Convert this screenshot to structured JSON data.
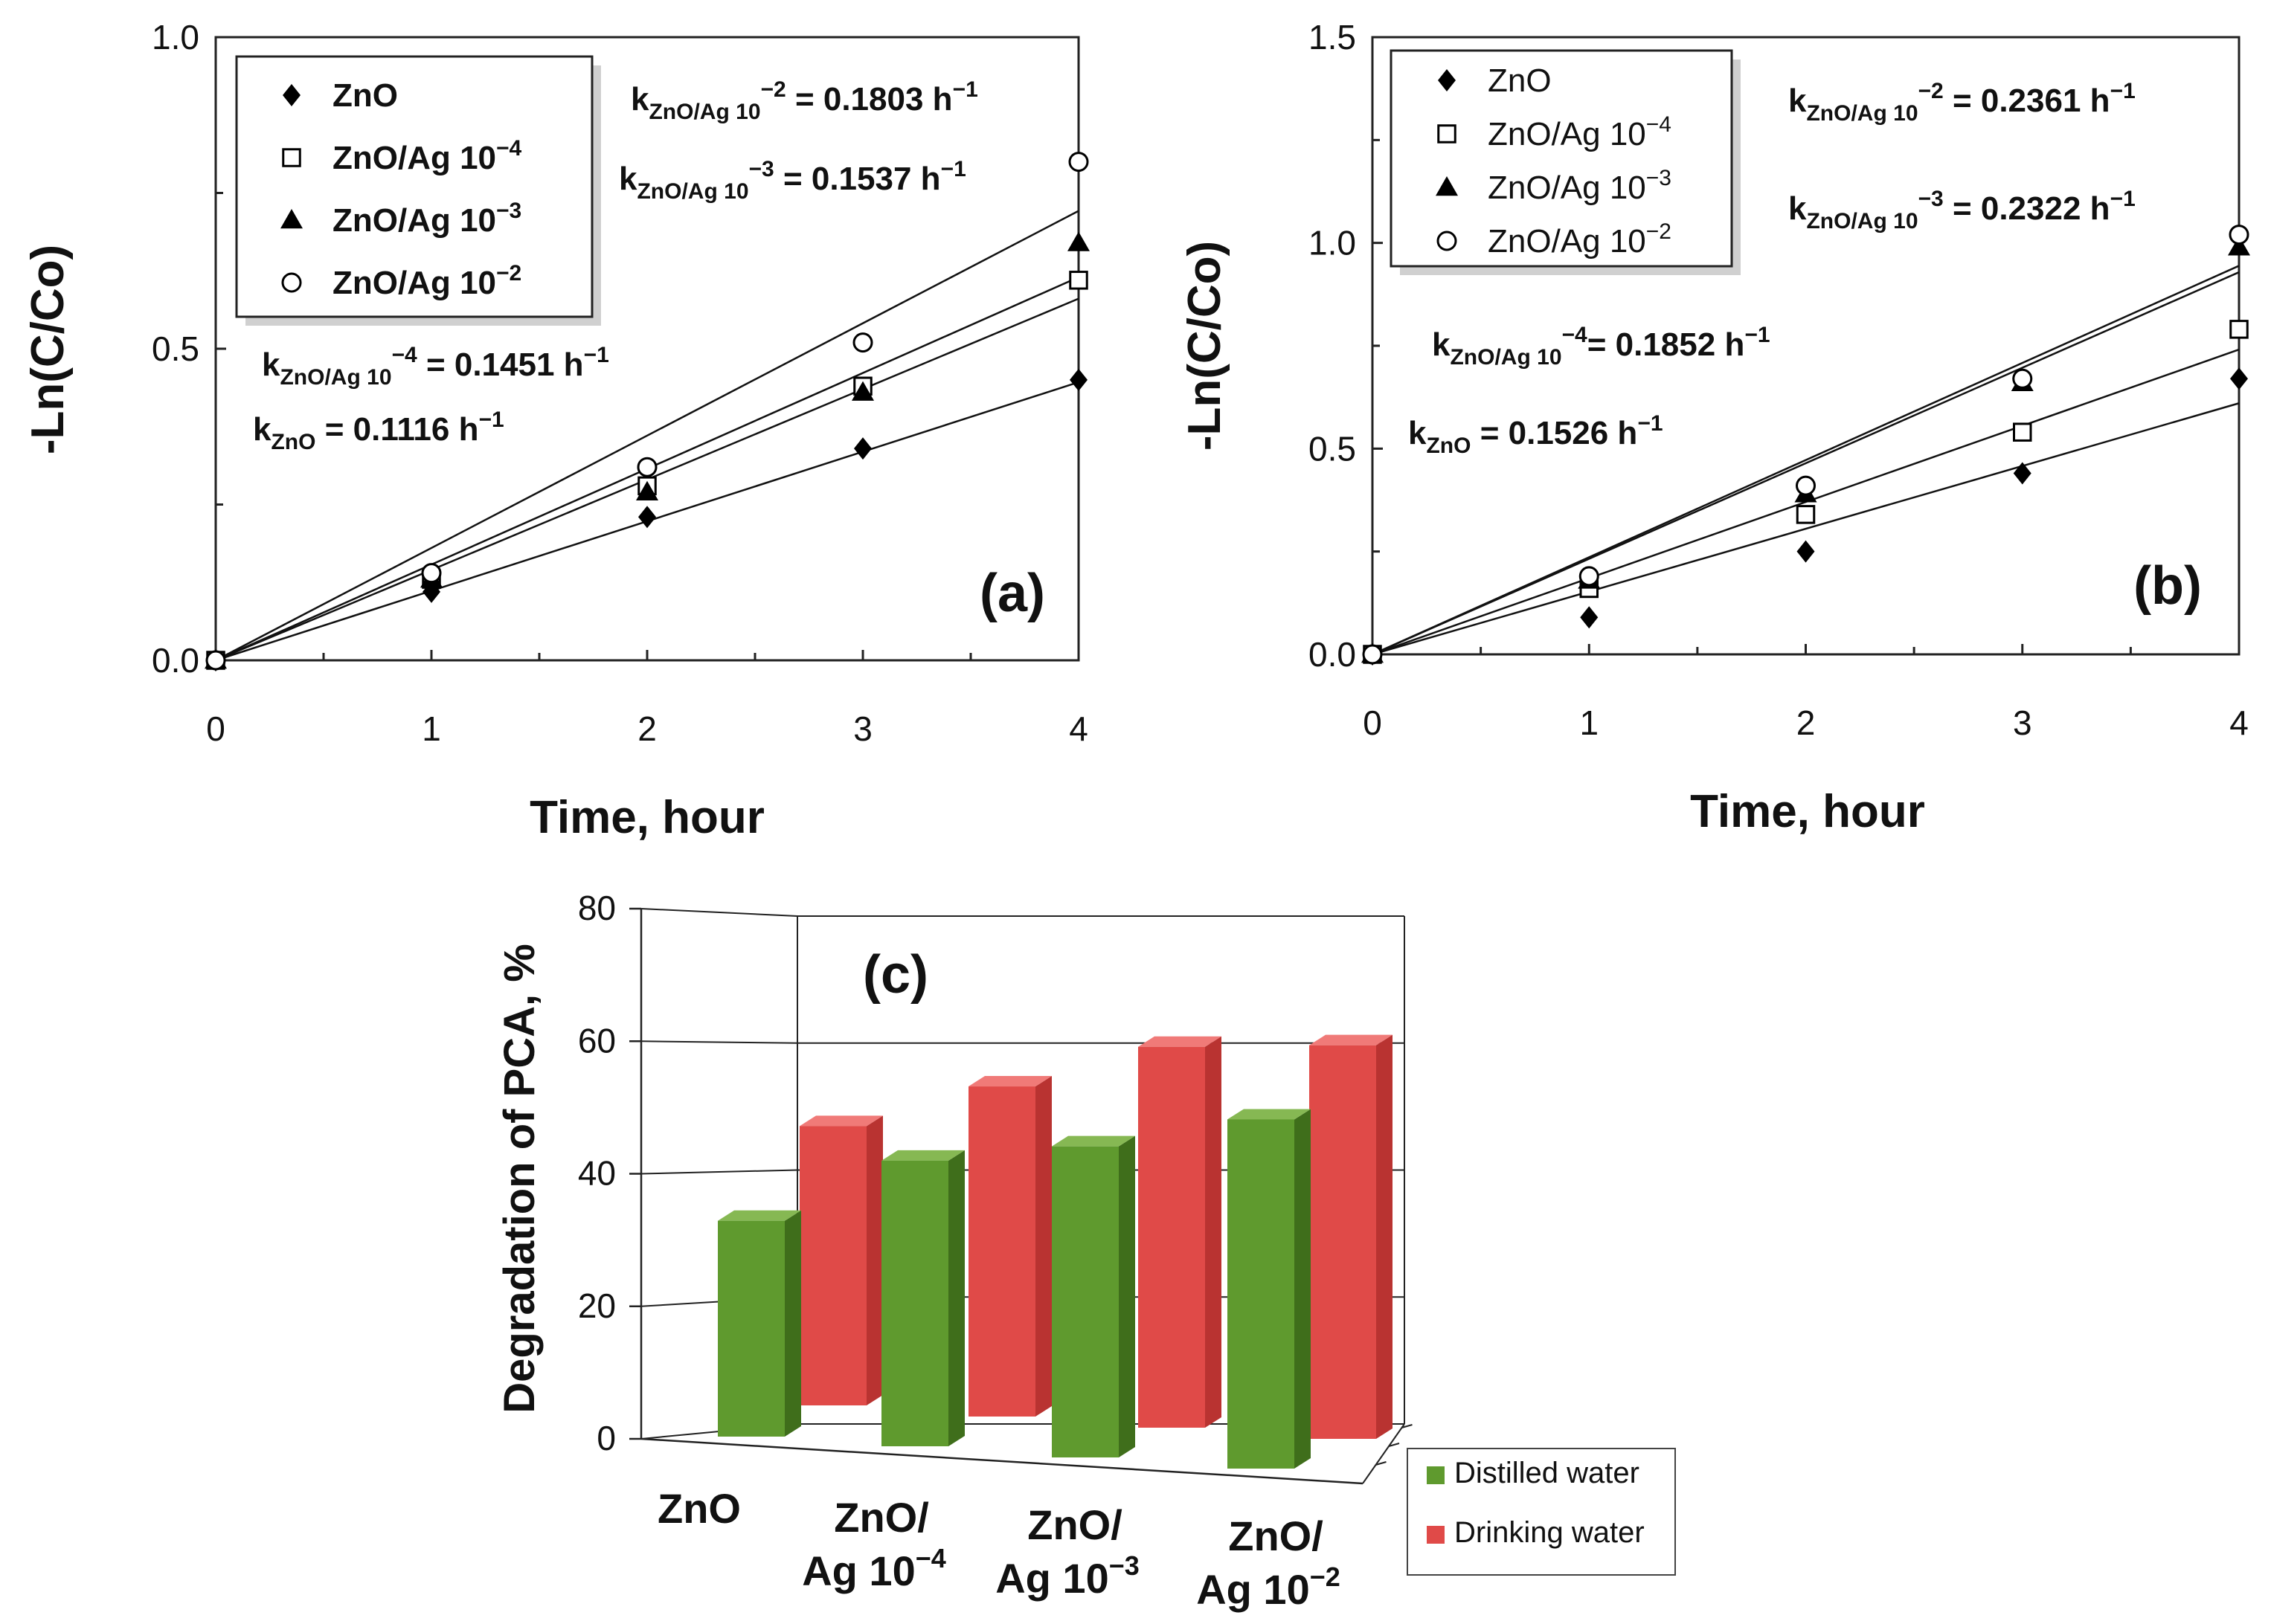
{
  "chart_data": [
    {
      "type": "scatter",
      "panel_label": "(a)",
      "xlabel": "Time, hour",
      "ylabel": "-Ln(C/Co)",
      "xlim": [
        0,
        4
      ],
      "ylim": [
        0,
        1.0
      ],
      "x_ticks": [
        "0",
        "1",
        "2",
        "3",
        "4"
      ],
      "y_ticks": [
        "0.0",
        "0.5",
        "1.0"
      ],
      "legend_position": "top-left",
      "series": [
        {
          "name": "ZnO",
          "marker": "diamond",
          "x": [
            0,
            1,
            2,
            3,
            4
          ],
          "y": [
            0,
            0.11,
            0.23,
            0.34,
            0.45
          ],
          "slope": 0.1116,
          "legend_label": "ZnO",
          "legend_sup": ""
        },
        {
          "name": "ZnO/Ag 10⁻⁴",
          "marker": "square-open",
          "x": [
            0,
            1,
            2,
            3,
            4
          ],
          "y": [
            0,
            0.13,
            0.28,
            0.44,
            0.61
          ],
          "slope": 0.1451,
          "legend_label": "ZnO/Ag 10",
          "legend_sup": "−4"
        },
        {
          "name": "ZnO/Ag 10⁻³",
          "marker": "triangle",
          "x": [
            0,
            1,
            2,
            3,
            4
          ],
          "y": [
            0,
            0.13,
            0.27,
            0.43,
            0.67
          ],
          "slope": 0.1537,
          "legend_label": "ZnO/Ag 10",
          "legend_sup": "−3"
        },
        {
          "name": "ZnO/Ag 10⁻²",
          "marker": "circle-open",
          "x": [
            0,
            1,
            2,
            3,
            4
          ],
          "y": [
            0,
            0.14,
            0.31,
            0.51,
            0.8
          ],
          "slope": 0.1803,
          "legend_label": "ZnO/Ag 10",
          "legend_sup": "−2"
        }
      ],
      "annotations": {
        "k_ag2": {
          "sub": "ZnO/Ag 10",
          "sup": "−2",
          "value": " = 0.1803 h",
          "unit_sup": "−1"
        },
        "k_ag3": {
          "sub": "ZnO/Ag 10",
          "sup": "−3",
          "value": " = 0.1537 h",
          "unit_sup": "−1"
        },
        "k_ag4": {
          "sub": "ZnO/Ag 10",
          "sup": "−4",
          "value": " = 0.1451 h",
          "unit_sup": "−1"
        },
        "k_zno": {
          "sub": "ZnO",
          "sup": "",
          "value": " = 0.1116 h",
          "unit_sup": "−1"
        }
      }
    },
    {
      "type": "scatter",
      "panel_label": "(b)",
      "xlabel": "Time, hour",
      "ylabel": "-Ln(C/Co)",
      "xlim": [
        0,
        4
      ],
      "ylim": [
        0,
        1.5
      ],
      "x_ticks": [
        "0",
        "1",
        "2",
        "3",
        "4"
      ],
      "y_ticks": [
        "0.0",
        "0.5",
        "1.0",
        "1.5"
      ],
      "legend_position": "top-left",
      "series": [
        {
          "name": "ZnO",
          "marker": "diamond",
          "x": [
            0,
            1,
            2,
            3,
            4
          ],
          "y": [
            0,
            0.09,
            0.25,
            0.44,
            0.67
          ],
          "slope": 0.1526,
          "legend_label": "ZnO",
          "legend_sup": ""
        },
        {
          "name": "ZnO/Ag 10⁻⁴",
          "marker": "square-open",
          "x": [
            0,
            1,
            2,
            3,
            4
          ],
          "y": [
            0,
            0.16,
            0.34,
            0.54,
            0.79
          ],
          "slope": 0.1852,
          "legend_label": "ZnO/Ag  10",
          "legend_sup": "−4"
        },
        {
          "name": "ZnO/Ag 10⁻³",
          "marker": "triangle",
          "x": [
            0,
            1,
            2,
            3,
            4
          ],
          "y": [
            0,
            0.18,
            0.39,
            0.66,
            0.99
          ],
          "slope": 0.2322,
          "legend_label": "ZnO/Ag  10",
          "legend_sup": "−3"
        },
        {
          "name": "ZnO/Ag 10⁻²",
          "marker": "circle-open",
          "x": [
            0,
            1,
            2,
            3,
            4
          ],
          "y": [
            0,
            0.19,
            0.41,
            0.67,
            1.02
          ],
          "slope": 0.2361,
          "legend_label": "ZnO/Ag  10",
          "legend_sup": "−2"
        }
      ],
      "annotations": {
        "k_ag2": {
          "sub": "ZnO/Ag 10",
          "sup": "−2",
          "value": " = 0.2361 h",
          "unit_sup": "−1"
        },
        "k_ag3": {
          "sub": "ZnO/Ag 10",
          "sup": "−3",
          "value": " = 0.2322 h",
          "unit_sup": "−1"
        },
        "k_ag4": {
          "sub": "ZnO/Ag 10",
          "sup": "−4",
          "value": "= 0.1852 h",
          "unit_sup": "−1"
        },
        "k_zno": {
          "sub": "ZnO",
          "sup": "",
          "value": " = 0.1526 h",
          "unit_sup": "−1"
        }
      }
    },
    {
      "type": "bar",
      "panel_label": "(c)",
      "ylabel": "Degradation of PCA, %",
      "ylim": [
        0,
        80
      ],
      "y_ticks": [
        "0",
        "20",
        "40",
        "60",
        "80"
      ],
      "categories": [
        {
          "line1": "ZnO",
          "line2": "",
          "sup": ""
        },
        {
          "line1": "ZnO/",
          "line2": "Ag 10",
          "sup": "−4"
        },
        {
          "line1": "ZnO/",
          "line2": "Ag 10",
          "sup": "−3"
        },
        {
          "line1": "ZnO/",
          "line2": "Ag 10",
          "sup": "−2"
        }
      ],
      "series": [
        {
          "name": "Distilled water",
          "values": [
            34,
            45,
            49,
            55
          ],
          "color": "#5f9a2e"
        },
        {
          "name": "Drinking water",
          "values": [
            44,
            52,
            60,
            62
          ],
          "color": "#e04a48"
        }
      ],
      "legend_position": "bottom-right"
    }
  ]
}
